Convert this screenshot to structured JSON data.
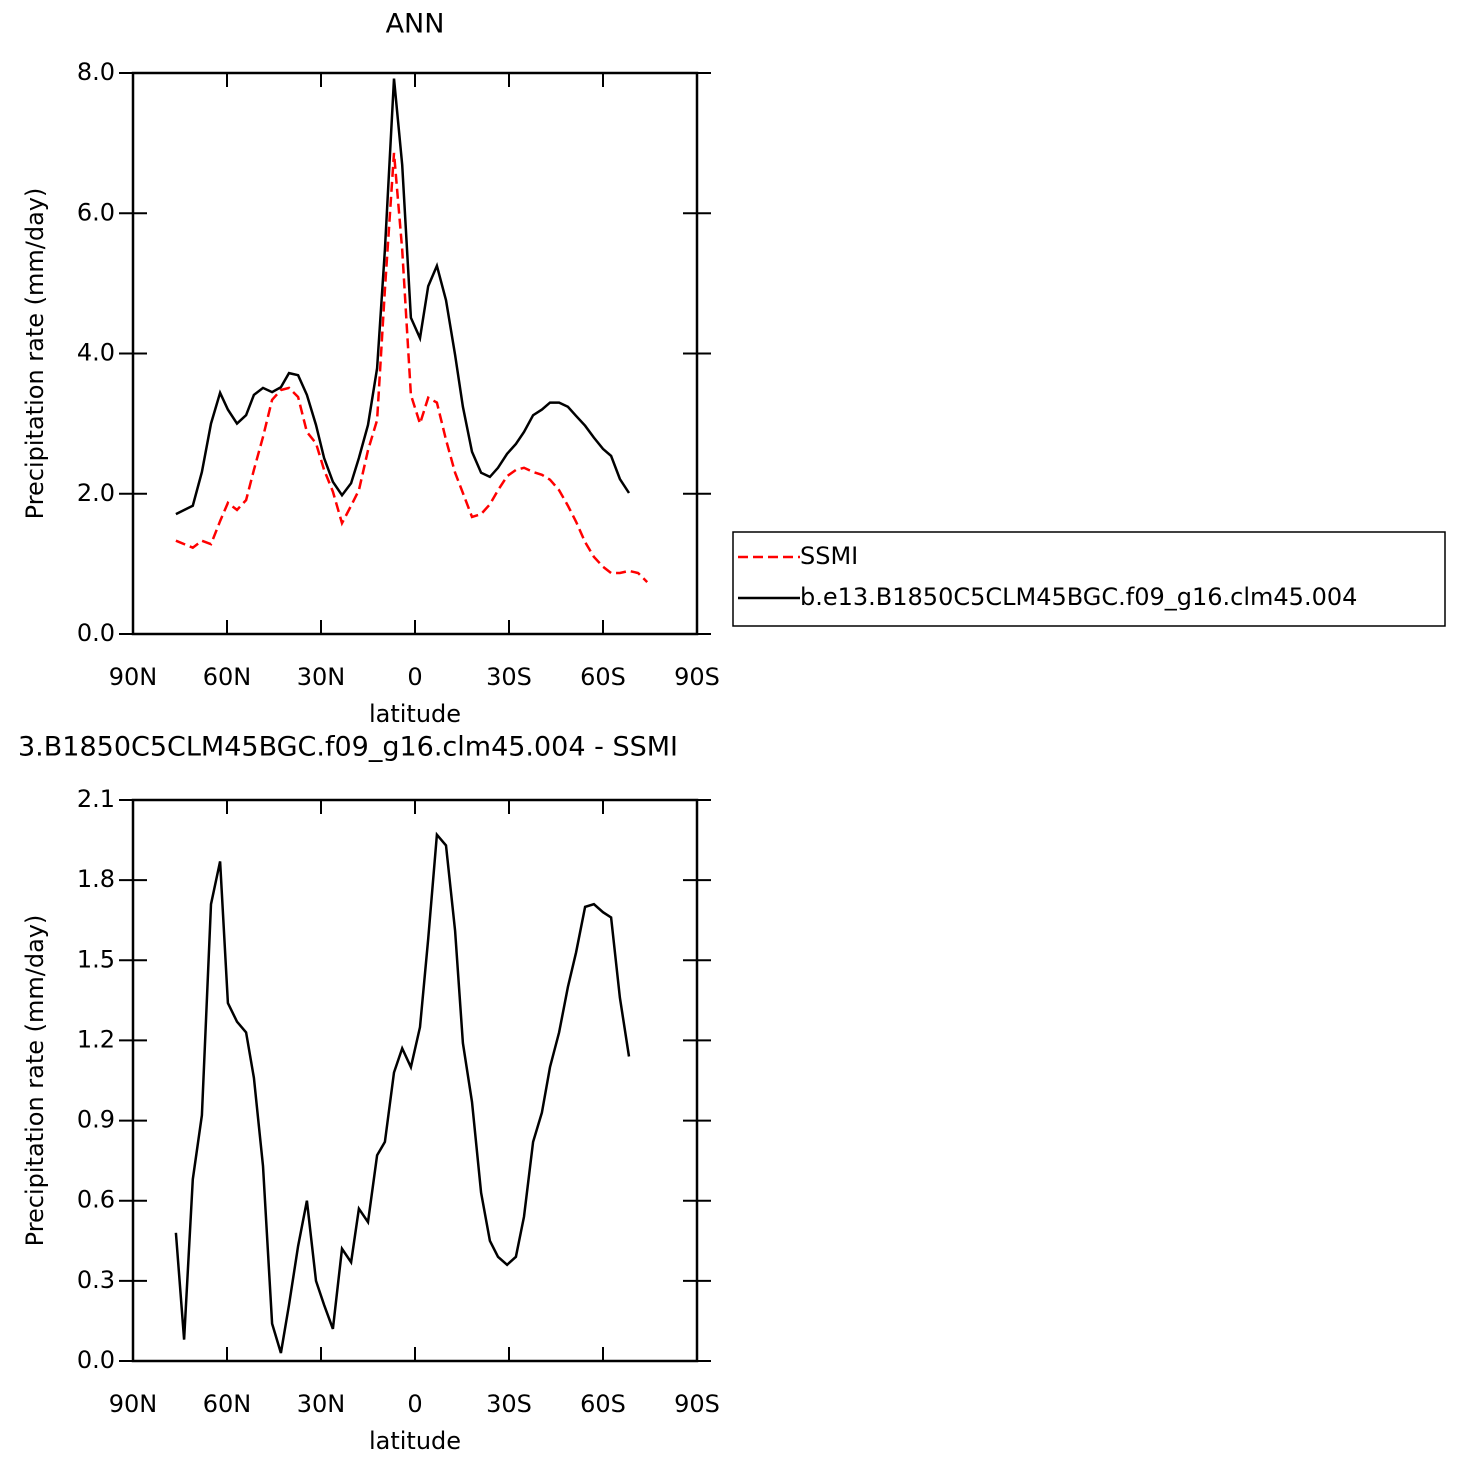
{
  "chart_data": [
    {
      "type": "line",
      "title": "ANN",
      "xlabel": "latitude",
      "ylabel": "Precipitation rate (mm/day)",
      "xlim": [
        90,
        -90
      ],
      "xticks": [
        {
          "value": 90,
          "label": "90N"
        },
        {
          "value": 60,
          "label": "60N"
        },
        {
          "value": 30,
          "label": "30N"
        },
        0,
        {
          "value": -30,
          "label": "30S"
        },
        {
          "value": -60,
          "label": "60S"
        },
        {
          "value": -90,
          "label": "90S"
        }
      ],
      "ylim": [
        0,
        8
      ],
      "yticks": [
        {
          "value": 0,
          "label": "0.0"
        },
        {
          "value": 2,
          "label": "2.0"
        },
        {
          "value": 4,
          "label": "4.0"
        },
        {
          "value": 6,
          "label": "6.0"
        },
        {
          "value": 8,
          "label": "8.0"
        }
      ],
      "legend": "outside-right",
      "series": [
        {
          "name": "SSMI",
          "color": "#ff0000",
          "style": "dashed",
          "x": [
            76.3,
            70.9,
            68.0,
            65.1,
            62.2,
            59.7,
            56.8,
            53.9,
            51.4,
            48.5,
            45.6,
            42.8,
            40.2,
            37.3,
            34.5,
            31.6,
            29.0,
            26.2,
            23.3,
            20.4,
            17.9,
            15.0,
            12.1,
            9.6,
            6.7,
            4.1,
            1.3,
            -1.6,
            -4.2,
            -7.0,
            -9.9,
            -12.8,
            -15.3,
            -18.2,
            -21.1,
            -23.9,
            -26.5,
            -29.4,
            -32.2,
            -34.8,
            -37.7,
            -40.5,
            -43.1,
            -46.0,
            -48.8,
            -51.4,
            -54.3,
            -57.1,
            -60.0,
            -62.6,
            -65.4,
            -68.3,
            -71.2,
            -74.1
          ],
          "values": [
            1.33,
            1.23,
            1.33,
            1.28,
            1.61,
            1.87,
            1.77,
            1.91,
            2.34,
            2.81,
            3.34,
            3.48,
            3.51,
            3.38,
            2.88,
            2.72,
            2.34,
            2.03,
            1.58,
            1.83,
            2.05,
            2.62,
            3.05,
            4.91,
            6.86,
            5.48,
            3.41,
            3.0,
            3.37,
            3.3,
            2.77,
            2.3,
            2.01,
            1.67,
            1.71,
            1.85,
            2.05,
            2.25,
            2.34,
            2.37,
            2.31,
            2.27,
            2.2,
            2.05,
            1.83,
            1.6,
            1.31,
            1.1,
            0.96,
            0.87,
            0.87,
            0.9,
            0.87,
            0.74
          ]
        },
        {
          "name": "b.e13.B1850C5CLM45BGC.f09_g16.clm45.004",
          "color": "#000000",
          "style": "solid",
          "x": [
            76.3,
            70.9,
            68.0,
            65.1,
            62.2,
            59.7,
            56.8,
            53.9,
            51.4,
            48.5,
            45.6,
            42.8,
            40.2,
            37.3,
            34.5,
            31.6,
            29.0,
            26.2,
            23.3,
            20.4,
            17.9,
            15.0,
            12.1,
            9.6,
            6.7,
            4.1,
            1.3,
            -1.6,
            -4.2,
            -7.0,
            -9.9,
            -12.8,
            -15.3,
            -18.2,
            -21.1,
            -23.9,
            -26.5,
            -29.4,
            -32.2,
            -34.8,
            -37.7,
            -40.5,
            -43.1,
            -46.0,
            -48.8,
            -51.4,
            -54.3,
            -57.1,
            -60.0,
            -62.6,
            -65.4,
            -68.3
          ],
          "values": [
            1.71,
            1.83,
            2.31,
            3.0,
            3.44,
            3.2,
            3.0,
            3.12,
            3.41,
            3.51,
            3.45,
            3.52,
            3.72,
            3.69,
            3.41,
            2.98,
            2.51,
            2.17,
            1.98,
            2.15,
            2.51,
            2.98,
            3.79,
            5.48,
            7.92,
            6.69,
            4.51,
            4.22,
            4.96,
            5.25,
            4.76,
            3.98,
            3.24,
            2.6,
            2.3,
            2.24,
            2.37,
            2.57,
            2.71,
            2.88,
            3.12,
            3.2,
            3.3,
            3.3,
            3.24,
            3.11,
            2.97,
            2.8,
            2.64,
            2.54,
            2.21,
            2.01
          ]
        }
      ]
    },
    {
      "type": "line",
      "title": "3.B1850C5CLM45BGC.f09_g16.clm45.004 - SSMI",
      "xlabel": "latitude",
      "ylabel": "Precipitation rate (mm/day)",
      "xlim": [
        90,
        -90
      ],
      "xticks": [
        {
          "value": 90,
          "label": "90N"
        },
        {
          "value": 60,
          "label": "60N"
        },
        {
          "value": 30,
          "label": "30N"
        },
        0,
        {
          "value": -30,
          "label": "30S"
        },
        {
          "value": -60,
          "label": "60S"
        },
        {
          "value": -90,
          "label": "90S"
        }
      ],
      "ylim": [
        0,
        2.1
      ],
      "yticks": [
        {
          "value": 0,
          "label": "0.0"
        },
        0.3,
        0.6,
        0.9,
        1.2,
        1.5,
        1.8,
        2.1
      ],
      "series": [
        {
          "color": "#000000",
          "style": "solid",
          "x": [
            76.3,
            73.7,
            70.9,
            68.0,
            65.1,
            62.2,
            59.7,
            56.8,
            53.9,
            51.4,
            48.5,
            45.6,
            42.8,
            40.2,
            37.3,
            34.5,
            31.6,
            29.0,
            26.2,
            23.3,
            20.4,
            17.9,
            15.0,
            12.1,
            9.6,
            6.7,
            4.1,
            1.3,
            -1.6,
            -4.2,
            -7.0,
            -9.9,
            -12.8,
            -15.3,
            -18.2,
            -21.1,
            -23.9,
            -26.5,
            -29.4,
            -32.2,
            -34.8,
            -37.7,
            -40.5,
            -43.1,
            -46.0,
            -48.8,
            -51.4,
            -54.3,
            -57.1,
            -60.0,
            -62.6,
            -65.4,
            -68.3
          ],
          "values": [
            0.48,
            0.08,
            0.68,
            0.92,
            1.71,
            1.87,
            1.34,
            1.27,
            1.23,
            1.06,
            0.73,
            0.14,
            0.03,
            0.21,
            0.43,
            0.6,
            0.3,
            0.21,
            0.12,
            0.42,
            0.37,
            0.57,
            0.52,
            0.77,
            0.82,
            1.08,
            1.17,
            1.1,
            1.25,
            1.58,
            1.97,
            1.93,
            1.61,
            1.19,
            0.97,
            0.63,
            0.45,
            0.39,
            0.36,
            0.39,
            0.54,
            0.82,
            0.93,
            1.1,
            1.23,
            1.4,
            1.53,
            1.7,
            1.71,
            1.68,
            1.66,
            1.36,
            1.14
          ]
        }
      ]
    }
  ]
}
